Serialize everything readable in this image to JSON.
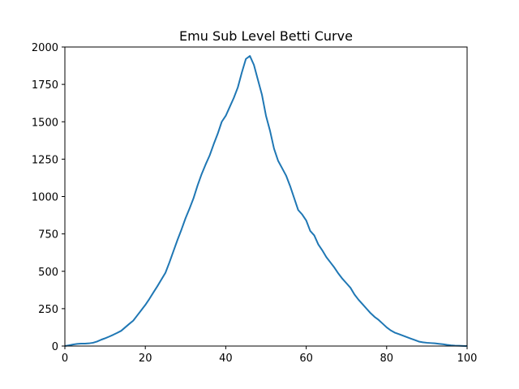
{
  "chart_data": {
    "type": "line",
    "title": "Emu Sub Level Betti Curve",
    "xlabel": "",
    "ylabel": "",
    "xlim": [
      0,
      100
    ],
    "ylim": [
      0,
      2000
    ],
    "x_ticks": [
      0,
      20,
      40,
      60,
      80,
      100
    ],
    "y_ticks": [
      0,
      250,
      500,
      750,
      1000,
      1250,
      1500,
      1750,
      2000
    ],
    "grid": false,
    "legend": "none",
    "series": [
      {
        "color": "#1f77b4",
        "x": [
          0,
          1,
          2,
          3,
          4,
          5,
          6,
          7,
          8,
          9,
          10,
          11,
          12,
          13,
          14,
          15,
          16,
          17,
          18,
          19,
          20,
          21,
          22,
          23,
          24,
          25,
          26,
          27,
          28,
          29,
          30,
          31,
          32,
          33,
          34,
          35,
          36,
          37,
          38,
          39,
          40,
          41,
          42,
          43,
          44,
          45,
          46,
          47,
          48,
          49,
          50,
          51,
          52,
          53,
          54,
          55,
          56,
          57,
          58,
          59,
          60,
          61,
          62,
          63,
          64,
          65,
          66,
          67,
          68,
          69,
          70,
          71,
          72,
          73,
          74,
          75,
          76,
          77,
          78,
          79,
          80,
          81,
          82,
          83,
          84,
          85,
          86,
          87,
          88,
          89,
          90,
          91,
          92,
          93,
          94,
          95,
          96,
          97,
          98,
          99,
          100
        ],
        "y": [
          0,
          5,
          10,
          14,
          16,
          16,
          18,
          22,
          30,
          42,
          52,
          63,
          75,
          88,
          102,
          125,
          148,
          170,
          205,
          240,
          275,
          315,
          358,
          400,
          445,
          490,
          560,
          635,
          710,
          780,
          855,
          920,
          990,
          1075,
          1150,
          1215,
          1275,
          1350,
          1420,
          1500,
          1540,
          1600,
          1660,
          1730,
          1830,
          1920,
          1940,
          1880,
          1780,
          1680,
          1540,
          1440,
          1320,
          1240,
          1190,
          1140,
          1070,
          990,
          910,
          880,
          840,
          770,
          740,
          680,
          640,
          595,
          560,
          525,
          485,
          450,
          420,
          390,
          345,
          310,
          280,
          250,
          220,
          195,
          175,
          150,
          125,
          105,
          90,
          80,
          70,
          60,
          50,
          40,
          30,
          25,
          22,
          20,
          18,
          15,
          12,
          8,
          5,
          3,
          2,
          1,
          0
        ]
      }
    ]
  }
}
